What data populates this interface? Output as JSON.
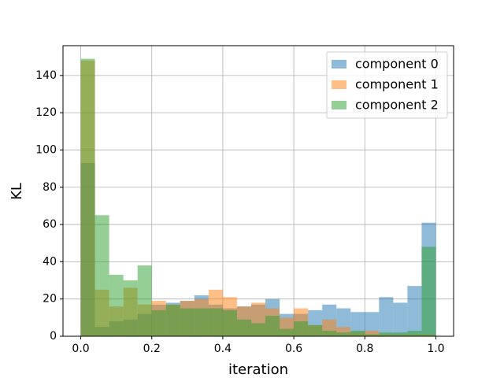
{
  "chart_data": {
    "type": "histogram",
    "x_label": "iteration",
    "y_label": "KL",
    "bins": [
      0,
      0.04,
      0.08,
      0.12,
      0.16,
      0.2,
      0.24,
      0.28,
      0.32,
      0.36,
      0.4,
      0.44,
      0.48,
      0.52,
      0.56,
      0.6,
      0.64,
      0.68,
      0.72,
      0.76,
      0.8,
      0.84,
      0.88,
      0.92,
      0.96,
      1.0
    ],
    "series": [
      {
        "name": "component 0",
        "color": "#1f77b4",
        "values": [
          93,
          5,
          8,
          9,
          12,
          17,
          18,
          19,
          22,
          17,
          15,
          16,
          17,
          20,
          12,
          12,
          14,
          17,
          15,
          13,
          13,
          21,
          18,
          27,
          61
        ]
      },
      {
        "name": "component 1",
        "color": "#ff7f0e",
        "values": [
          148,
          25,
          16,
          26,
          17,
          19,
          17,
          19,
          20,
          25,
          21,
          16,
          18,
          15,
          10,
          15,
          6,
          9,
          5,
          2,
          3,
          1,
          1,
          1,
          1
        ]
      },
      {
        "name": "component 2",
        "color": "#2ca02c",
        "values": [
          149,
          65,
          33,
          30,
          38,
          14,
          17,
          15,
          15,
          15,
          14,
          9,
          7,
          11,
          4,
          8,
          6,
          3,
          2,
          3,
          1,
          2,
          2,
          3,
          48
        ]
      }
    ],
    "opacity": 0.5,
    "xlim": [
      -0.05,
      1.05
    ],
    "ylim": [
      0,
      156
    ],
    "xticks": [
      {
        "value": 0,
        "label": "0.0"
      },
      0.2,
      0.4,
      0.6,
      0.8,
      {
        "value": 1,
        "label": "1.0"
      }
    ],
    "yticks": [
      0,
      20,
      40,
      60,
      80,
      100,
      120,
      140
    ],
    "grid": true,
    "legend": "upper right"
  }
}
